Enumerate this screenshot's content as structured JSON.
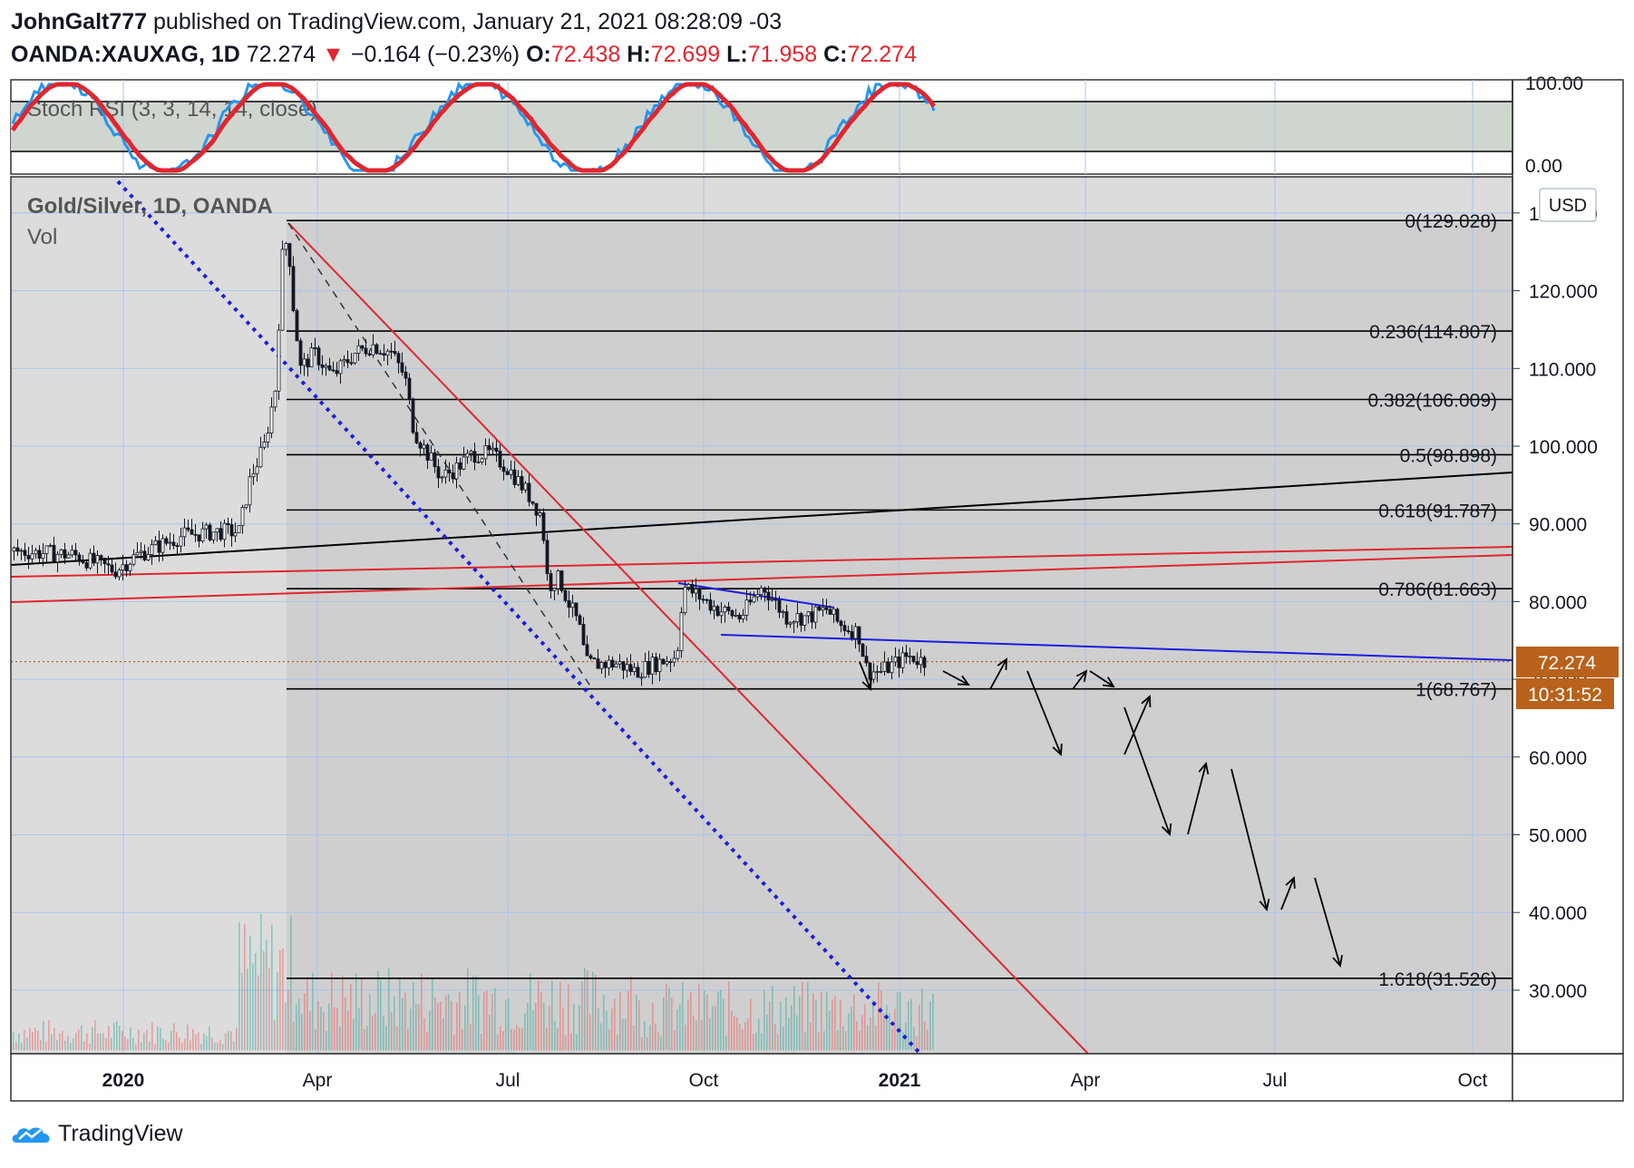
{
  "header": {
    "author": "JohnGalt777",
    "published_text": "published on TradingView.com, January 21, 2021 08:28:09 -03",
    "symbol": "OANDA:XAUXAG, 1D",
    "last": "72.274",
    "arrow": "▼",
    "change": "−0.164 (−0.23%)",
    "o_label": "O:",
    "o_value": "72.438",
    "h_label": "H:",
    "h_value": "72.699",
    "l_label": "L:",
    "l_value": "71.958",
    "c_label": "C:",
    "c_value": "72.274"
  },
  "indicator": {
    "label": "Stoch RSI (3, 3, 14, 14, close)",
    "ticks": [
      "100.00",
      "0.00"
    ]
  },
  "main": {
    "title": "Gold/Silver, 1D, OANDA",
    "vol_label": "Vol",
    "currency": "USD",
    "price_tag": "72.274",
    "countdown": "10:31:52"
  },
  "chart_data": {
    "type": "candlestick",
    "y_ticks": [
      130,
      120,
      110,
      100,
      90,
      80,
      70,
      60,
      50,
      40,
      30
    ],
    "y_tick_labels": [
      "130.000",
      "120.000",
      "110.000",
      "100.000",
      "90.000",
      "80.000",
      "70.000",
      "60.000",
      "50.000",
      "40.000",
      "30.000"
    ],
    "ylim": [
      21,
      131
    ],
    "x_labels": [
      "2020",
      "Apr",
      "Jul",
      "Oct",
      "2021",
      "Apr",
      "Jul",
      "Oct"
    ],
    "x_label_bold": [
      true,
      false,
      false,
      false,
      true,
      false,
      false,
      false
    ],
    "fib_levels": [
      {
        "label": "0(129.028)",
        "value": 129.028
      },
      {
        "label": "0.236(114.807)",
        "value": 114.807
      },
      {
        "label": "0.382(106.009)",
        "value": 106.009
      },
      {
        "label": "0.5(98.898)",
        "value": 98.898
      },
      {
        "label": "0.618(91.787)",
        "value": 91.787
      },
      {
        "label": "0.786(81.663)",
        "value": 81.663
      },
      {
        "label": "1(68.767)",
        "value": 68.767
      },
      {
        "label": "1.618(31.526)",
        "value": 31.526
      }
    ],
    "last_price": 72.274,
    "colors": {
      "up": "#26a69a",
      "down": "#ef5350",
      "candle": "#131722",
      "fib": "#000000",
      "trend_red": "#e0262f",
      "trend_blue": "#1c1ce0",
      "stoch_k": "#2196f3",
      "stoch_d": "#e0262f",
      "price_tag": "#b8621b",
      "fib_box": "#cfcfcf",
      "bg": "#dcdcdc"
    }
  },
  "footer": {
    "brand": "TradingView"
  }
}
